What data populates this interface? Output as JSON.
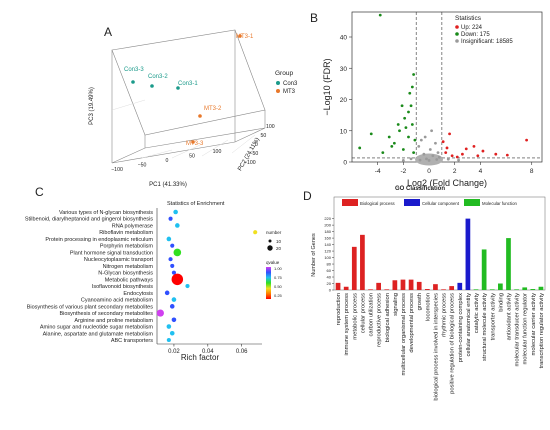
{
  "chart_data": [
    {
      "panel": "A",
      "type": "scatter",
      "axes": {
        "pc1": {
          "label": "PC1 (41.33%)",
          "ticks": [
            "−100",
            "−50",
            "0",
            "50",
            "100"
          ]
        },
        "pc2": {
          "label": "PC2 (24.11%)",
          "ticks": [
            "−100",
            "−50",
            "0",
            "50",
            "100"
          ]
        },
        "pc3": {
          "label": "PC3 (19.49%)"
        }
      },
      "legend": {
        "title": "Group",
        "placement": "right",
        "entries": [
          {
            "name": "Con3",
            "color": "#1a9a8a"
          },
          {
            "name": "MT3",
            "color": "#e8782a"
          }
        ]
      },
      "points": [
        {
          "label": "Con3-3",
          "group": "Con3"
        },
        {
          "label": "Con3-2",
          "group": "Con3"
        },
        {
          "label": "Con3-1",
          "group": "Con3"
        },
        {
          "label": "MT3-1",
          "group": "MT3"
        },
        {
          "label": "MT3-2",
          "group": "MT3"
        },
        {
          "label": "MT3-3",
          "group": "MT3"
        }
      ]
    },
    {
      "panel": "B",
      "type": "scatter",
      "xlabel": "Log2 (Fold Change)",
      "ylabel": "−Log10 (FDR)",
      "xlim": [
        -6,
        8.8
      ],
      "ylim": [
        0,
        48
      ],
      "xticks": [
        -4,
        -2,
        0,
        2,
        4,
        8
      ],
      "yticks": [
        0,
        10,
        20,
        30,
        40
      ],
      "thresholds": {
        "x": [
          -1,
          1
        ],
        "y": 1.3
      },
      "legend": {
        "title": "Statistics",
        "placement": "top-right",
        "entries": [
          {
            "label": "Up: 224",
            "color": "#e02020"
          },
          {
            "label": "Down: 175",
            "color": "#1a8a1a"
          },
          {
            "label": "Insignificant: 18585",
            "color": "#9a9a9a"
          }
        ]
      },
      "series": [
        {
          "name": "Up",
          "color": "#e02020",
          "points": [
            [
              1.6,
              9
            ],
            [
              1.4,
              4.5
            ],
            [
              3.5,
              5
            ],
            [
              1.1,
              6.5
            ],
            [
              2.6,
              2.5
            ],
            [
              4.2,
              3.5
            ],
            [
              1.8,
              2
            ],
            [
              2.2,
              1.6
            ],
            [
              5.2,
              2.5
            ],
            [
              7.6,
              7
            ],
            [
              6.1,
              2.2
            ],
            [
              1.3,
              3
            ],
            [
              2.9,
              4.2
            ],
            [
              3.8,
              2
            ]
          ]
        },
        {
          "name": "Down",
          "color": "#1a8a1a",
          "points": [
            [
              -3.8,
              47
            ],
            [
              -1.2,
              28
            ],
            [
              -1.3,
              24
            ],
            [
              -1.5,
              22
            ],
            [
              -2.1,
              18
            ],
            [
              -1.6,
              16
            ],
            [
              -1.9,
              14
            ],
            [
              -2.4,
              12
            ],
            [
              -1.3,
              12
            ],
            [
              -3.1,
              8
            ],
            [
              -4.5,
              9
            ],
            [
              -5.4,
              4.5
            ],
            [
              -2.7,
              6
            ],
            [
              -1.6,
              8
            ],
            [
              -2.0,
              4
            ],
            [
              -1.1,
              7
            ],
            [
              -2.3,
              10
            ],
            [
              -1.4,
              18
            ],
            [
              -1.8,
              11
            ],
            [
              -2.9,
              5
            ],
            [
              -1.2,
              3
            ],
            [
              -3.6,
              3
            ]
          ]
        },
        {
          "name": "Insignificant",
          "color": "#9a9a9a",
          "points": [
            [
              0.2,
              10
            ],
            [
              -0.3,
              8
            ],
            [
              0.5,
              6
            ],
            [
              -0.6,
              7
            ],
            [
              0.1,
              4
            ],
            [
              0.7,
              3
            ],
            [
              -0.8,
              5
            ],
            [
              0.3,
              2
            ],
            [
              -0.4,
              2.5
            ],
            [
              0.8,
              1.5
            ],
            [
              -0.2,
              1
            ],
            [
              0.6,
              0.8
            ],
            [
              -0.7,
              0.6
            ],
            [
              0.0,
              0.5
            ],
            [
              -1.4,
              1
            ],
            [
              1.5,
              0.9
            ],
            [
              -2,
              0.5
            ],
            [
              2.3,
              0.6
            ]
          ]
        }
      ]
    },
    {
      "panel": "C",
      "type": "scatter",
      "title": "Statistics of Enrichment",
      "xlabel": "Rich factor",
      "xlim": [
        0.01,
        0.072
      ],
      "xticks": [
        0.02,
        0.04,
        0.06
      ],
      "categories": [
        "Various types of N-glycan biosynthesis",
        "Stilbenoid, diarylheptanoid and gingerol biosynthesis",
        "RNA polymerase",
        "Riboflavin metabolism",
        "Protein processing in endoplasmic reticulum",
        "Porphyrin metabolism",
        "Plant hormone signal transduction",
        "Nucleocytoplasmic transport",
        "Nitrogen metabolism",
        "N-Glycan biosynthesis",
        "Metabolic pathways",
        "Isoflavonoid biosynthesis",
        "Endocytosis",
        "Cyanoamino acid metabolism",
        "Biosynthesis of various plant secondary metabolites",
        "Biosynthesis of secondary metabolites",
        "Arginine and proline metabolism",
        "Amino sugar and nucleotide sugar metabolism",
        "Alanine, aspartate and glutamate metabolism",
        "ABC transporters"
      ],
      "rich_factor": [
        0.021,
        0.018,
        0.022,
        0.068,
        0.017,
        0.019,
        0.022,
        0.018,
        0.019,
        0.02,
        0.022,
        0.028,
        0.016,
        0.02,
        0.019,
        0.012,
        0.02,
        0.017,
        0.019,
        0.017
      ],
      "number": [
        3,
        2,
        3,
        2,
        3,
        2,
        14,
        2,
        2,
        2,
        40,
        2,
        3,
        3,
        3,
        12,
        3,
        3,
        3,
        2
      ],
      "qvalue": [
        0.7,
        0.8,
        0.75,
        0.3,
        0.75,
        0.85,
        0.5,
        0.8,
        0.8,
        0.8,
        0.05,
        0.6,
        0.9,
        0.6,
        0.9,
        1.0,
        0.85,
        0.7,
        0.7,
        0.6
      ],
      "legend_number": {
        "title": "number",
        "entries": [
          "10",
          "20"
        ]
      },
      "legend_qvalue": {
        "title": "qvalue",
        "ticks": [
          "1.00",
          "0.75",
          "0.50",
          "0.25"
        ],
        "colors": [
          "#d040f0",
          "#3050ff",
          "#20c0f0",
          "#30e020",
          "#f0e020",
          "#ff8000",
          "#ff0000"
        ]
      }
    },
    {
      "panel": "D",
      "type": "bar",
      "title": "GO Classification",
      "ylabel": "Number of Genes",
      "ylim": [
        0,
        225
      ],
      "yticks": [
        0,
        20,
        40,
        60,
        80,
        100,
        120,
        140,
        160,
        180,
        200,
        220
      ],
      "legend": [
        {
          "name": "Biological process",
          "color": "#dd2222"
        },
        {
          "name": "Cellular component",
          "color": "#1a1acc"
        },
        {
          "name": "Molecular function",
          "color": "#22bb22"
        }
      ],
      "categories": [
        "reproduction",
        "immune system process",
        "metabolic process",
        "cellular process",
        "carbon utilization",
        "reproductive process",
        "biological adhesion",
        "signaling",
        "multicellular organismal process",
        "developmental process",
        "growth",
        "locomotion",
        "biological process involved in interspecies",
        "rhythmic process",
        "positive regulation of biological process",
        "protein-containing complex",
        "cellular anatomical entity",
        "catalytic activity",
        "structural molecule activity",
        "transporter activity",
        "binding",
        "antioxidant activity",
        "molecular transducer activity",
        "molecular function regulator",
        "molecular carrier activity",
        "transcription regulator activity"
      ],
      "values": [
        22,
        10,
        133,
        170,
        2,
        22,
        2,
        30,
        32,
        32,
        25,
        3,
        18,
        2,
        12,
        22,
        220,
        2,
        125,
        2,
        20,
        160,
        2,
        8,
        3,
        10
      ],
      "groups": [
        "BP",
        "BP",
        "BP",
        "BP",
        "BP",
        "BP",
        "BP",
        "BP",
        "BP",
        "BP",
        "BP",
        "BP",
        "BP",
        "BP",
        "BP",
        "CC",
        "CC",
        "MF",
        "MF",
        "MF",
        "MF",
        "MF",
        "MF",
        "MF",
        "MF",
        "MF"
      ]
    }
  ]
}
